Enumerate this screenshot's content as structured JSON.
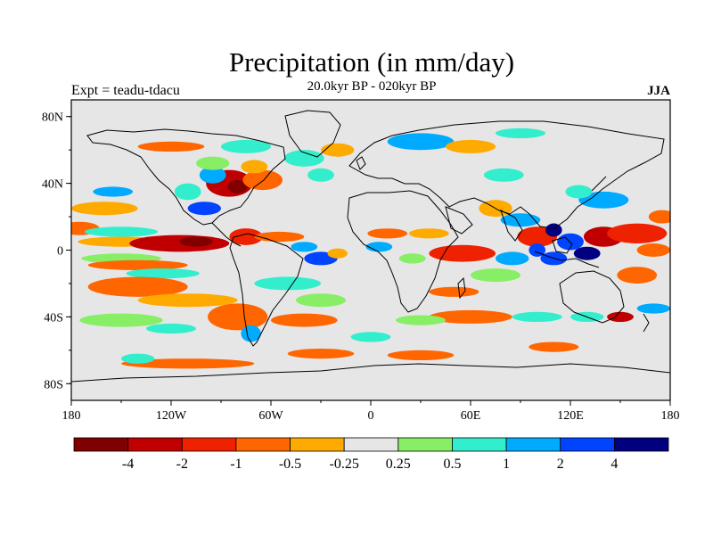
{
  "title": "Precipitation (in mm/day)",
  "subtitle": "20.0kyr BP - 020kyr BP",
  "left_label": "Expt = teadu-tdacu",
  "right_label": "JJA",
  "chart_data": {
    "type": "heatmap",
    "title": "Precipitation (in mm/day)",
    "subtitle": "20.0kyr BP - 020kyr BP",
    "experiment": "Expt = teadu-tdacu",
    "season": "JJA",
    "x_range": [
      -180,
      180
    ],
    "y_range": [
      -90,
      90
    ],
    "x_ticks": [
      {
        "value": -180,
        "label": "180"
      },
      {
        "value": -120,
        "label": "120W"
      },
      {
        "value": -60,
        "label": "60W"
      },
      {
        "value": 0,
        "label": "0"
      },
      {
        "value": 60,
        "label": "60E"
      },
      {
        "value": 120,
        "label": "120E"
      },
      {
        "value": 180,
        "label": "180"
      }
    ],
    "y_ticks": [
      {
        "value": 80,
        "label": "80N"
      },
      {
        "value": 40,
        "label": "40N"
      },
      {
        "value": 0,
        "label": "0"
      },
      {
        "value": -40,
        "label": "40S"
      },
      {
        "value": -80,
        "label": "80S"
      }
    ],
    "colorbar": {
      "colors": [
        "#800000",
        "#c00000",
        "#ee2200",
        "#ff6600",
        "#ffaa00",
        "#e6e6e6",
        "#88ee66",
        "#33eecc",
        "#00aaff",
        "#0044ff",
        "#000080"
      ],
      "labels": [
        {
          "at": 1,
          "text": "-4"
        },
        {
          "at": 2,
          "text": "-2"
        },
        {
          "at": 3,
          "text": "-1"
        },
        {
          "at": 4,
          "text": "-0.5"
        },
        {
          "at": 5,
          "text": "-0.25"
        },
        {
          "at": 6,
          "text": "0.25"
        },
        {
          "at": 7,
          "text": "0.5"
        },
        {
          "at": 8,
          "text": "1"
        },
        {
          "at": 9,
          "text": "2"
        },
        {
          "at": 10,
          "text": "4"
        }
      ]
    },
    "anomaly_patches": [
      {
        "lon": -175,
        "lat": 13,
        "rlon": 12,
        "rlat": 4,
        "level": 3
      },
      {
        "lon": -150,
        "lat": 11,
        "rlon": 22,
        "rlat": 3,
        "level": 7
      },
      {
        "lon": -150,
        "lat": 5,
        "rlon": 26,
        "rlat": 3,
        "level": 4
      },
      {
        "lon": -115,
        "lat": 4,
        "rlon": 30,
        "rlat": 5,
        "level": 1
      },
      {
        "lon": -105,
        "lat": 5,
        "rlon": 10,
        "rlat": 3,
        "level": 0
      },
      {
        "lon": -150,
        "lat": -5,
        "rlon": 24,
        "rlat": 3,
        "level": 6
      },
      {
        "lon": -140,
        "lat": -9,
        "rlon": 30,
        "rlat": 3,
        "level": 3
      },
      {
        "lon": -125,
        "lat": -14,
        "rlon": 22,
        "rlat": 3,
        "level": 7
      },
      {
        "lon": -140,
        "lat": -22,
        "rlon": 30,
        "rlat": 6,
        "level": 3
      },
      {
        "lon": -110,
        "lat": -30,
        "rlon": 30,
        "rlat": 4,
        "level": 4
      },
      {
        "lon": -150,
        "lat": -42,
        "rlon": 25,
        "rlat": 4,
        "level": 6
      },
      {
        "lon": -120,
        "lat": -47,
        "rlon": 15,
        "rlat": 3,
        "level": 7
      },
      {
        "lon": -80,
        "lat": -40,
        "rlon": 18,
        "rlat": 8,
        "level": 3
      },
      {
        "lon": -72,
        "lat": -50,
        "rlon": 6,
        "rlat": 5,
        "level": 8
      },
      {
        "lon": -85,
        "lat": 40,
        "rlon": 14,
        "rlat": 8,
        "level": 1
      },
      {
        "lon": -80,
        "lat": 38,
        "rlon": 6,
        "rlat": 4,
        "level": 0
      },
      {
        "lon": -65,
        "lat": 42,
        "rlon": 12,
        "rlat": 6,
        "level": 3
      },
      {
        "lon": -100,
        "lat": 25,
        "rlon": 10,
        "rlat": 4,
        "level": 9
      },
      {
        "lon": -95,
        "lat": 45,
        "rlon": 8,
        "rlat": 5,
        "level": 8
      },
      {
        "lon": -110,
        "lat": 35,
        "rlon": 8,
        "rlat": 5,
        "level": 7
      },
      {
        "lon": -95,
        "lat": 52,
        "rlon": 10,
        "rlat": 4,
        "level": 6
      },
      {
        "lon": -70,
        "lat": 50,
        "rlon": 8,
        "rlat": 4,
        "level": 4
      },
      {
        "lon": -120,
        "lat": 62,
        "rlon": 20,
        "rlat": 3,
        "level": 3
      },
      {
        "lon": -75,
        "lat": 62,
        "rlon": 15,
        "rlat": 4,
        "level": 7
      },
      {
        "lon": -75,
        "lat": 8,
        "rlon": 10,
        "rlat": 5,
        "level": 2
      },
      {
        "lon": -55,
        "lat": 8,
        "rlon": 15,
        "rlat": 3,
        "level": 3
      },
      {
        "lon": -40,
        "lat": 2,
        "rlon": 8,
        "rlat": 3,
        "level": 8
      },
      {
        "lon": -30,
        "lat": -5,
        "rlon": 10,
        "rlat": 4,
        "level": 9
      },
      {
        "lon": -20,
        "lat": -2,
        "rlon": 6,
        "rlat": 3,
        "level": 4
      },
      {
        "lon": -50,
        "lat": -20,
        "rlon": 20,
        "rlat": 4,
        "level": 7
      },
      {
        "lon": -40,
        "lat": -42,
        "rlon": 20,
        "rlat": 4,
        "level": 3
      },
      {
        "lon": -30,
        "lat": -30,
        "rlon": 15,
        "rlat": 4,
        "level": 6
      },
      {
        "lon": -160,
        "lat": 25,
        "rlon": 20,
        "rlat": 4,
        "level": 4
      },
      {
        "lon": -155,
        "lat": 35,
        "rlon": 12,
        "rlat": 3,
        "level": 8
      },
      {
        "lon": -40,
        "lat": 55,
        "rlon": 12,
        "rlat": 5,
        "level": 7
      },
      {
        "lon": -30,
        "lat": 45,
        "rlon": 8,
        "rlat": 4,
        "level": 7
      },
      {
        "lon": -20,
        "lat": 60,
        "rlon": 10,
        "rlat": 4,
        "level": 4
      },
      {
        "lon": 30,
        "lat": 65,
        "rlon": 20,
        "rlat": 5,
        "level": 8
      },
      {
        "lon": 60,
        "lat": 62,
        "rlon": 15,
        "rlat": 4,
        "level": 4
      },
      {
        "lon": 90,
        "lat": 70,
        "rlon": 15,
        "rlat": 3,
        "level": 7
      },
      {
        "lon": 80,
        "lat": 45,
        "rlon": 12,
        "rlat": 4,
        "level": 7
      },
      {
        "lon": 10,
        "lat": 10,
        "rlon": 12,
        "rlat": 3,
        "level": 3
      },
      {
        "lon": 35,
        "lat": 10,
        "rlon": 12,
        "rlat": 3,
        "level": 4
      },
      {
        "lon": 5,
        "lat": 2,
        "rlon": 8,
        "rlat": 3,
        "level": 8
      },
      {
        "lon": 25,
        "lat": -5,
        "rlon": 8,
        "rlat": 3,
        "level": 6
      },
      {
        "lon": 55,
        "lat": -2,
        "rlon": 20,
        "rlat": 5,
        "level": 2
      },
      {
        "lon": 85,
        "lat": -5,
        "rlon": 10,
        "rlat": 4,
        "level": 8
      },
      {
        "lon": 75,
        "lat": -15,
        "rlon": 15,
        "rlat": 4,
        "level": 6
      },
      {
        "lon": 50,
        "lat": -25,
        "rlon": 15,
        "rlat": 3,
        "level": 3
      },
      {
        "lon": 60,
        "lat": -40,
        "rlon": 25,
        "rlat": 4,
        "level": 3
      },
      {
        "lon": 30,
        "lat": -42,
        "rlon": 15,
        "rlat": 3,
        "level": 6
      },
      {
        "lon": 100,
        "lat": -40,
        "rlon": 15,
        "rlat": 3,
        "level": 7
      },
      {
        "lon": 75,
        "lat": 25,
        "rlon": 10,
        "rlat": 5,
        "level": 4
      },
      {
        "lon": 90,
        "lat": 18,
        "rlon": 12,
        "rlat": 4,
        "level": 8
      },
      {
        "lon": 100,
        "lat": 8,
        "rlon": 12,
        "rlat": 6,
        "level": 2
      },
      {
        "lon": 110,
        "lat": 12,
        "rlon": 5,
        "rlat": 4,
        "level": 10
      },
      {
        "lon": 120,
        "lat": 5,
        "rlon": 8,
        "rlat": 5,
        "level": 9
      },
      {
        "lon": 100,
        "lat": 0,
        "rlon": 5,
        "rlat": 4,
        "level": 9
      },
      {
        "lon": 110,
        "lat": -5,
        "rlon": 8,
        "rlat": 4,
        "level": 9
      },
      {
        "lon": 130,
        "lat": -2,
        "rlon": 8,
        "rlat": 4,
        "level": 10
      },
      {
        "lon": 140,
        "lat": 8,
        "rlon": 12,
        "rlat": 6,
        "level": 1
      },
      {
        "lon": 160,
        "lat": 10,
        "rlon": 18,
        "rlat": 6,
        "level": 2
      },
      {
        "lon": 170,
        "lat": 0,
        "rlon": 10,
        "rlat": 4,
        "level": 3
      },
      {
        "lon": 140,
        "lat": 30,
        "rlon": 15,
        "rlat": 5,
        "level": 8
      },
      {
        "lon": 125,
        "lat": 35,
        "rlon": 8,
        "rlat": 4,
        "level": 7
      },
      {
        "lon": 175,
        "lat": 20,
        "rlon": 8,
        "rlat": 4,
        "level": 3
      },
      {
        "lon": 160,
        "lat": -15,
        "rlon": 12,
        "rlat": 5,
        "level": 3
      },
      {
        "lon": 150,
        "lat": -40,
        "rlon": 8,
        "rlat": 3,
        "level": 1
      },
      {
        "lon": 130,
        "lat": -40,
        "rlon": 10,
        "rlat": 3,
        "level": 7
      },
      {
        "lon": 170,
        "lat": -35,
        "rlon": 10,
        "rlat": 3,
        "level": 8
      },
      {
        "lon": -110,
        "lat": -68,
        "rlon": 40,
        "rlat": 3,
        "level": 3
      },
      {
        "lon": -30,
        "lat": -62,
        "rlon": 20,
        "rlat": 3,
        "level": 3
      },
      {
        "lon": 30,
        "lat": -63,
        "rlon": 20,
        "rlat": 3,
        "level": 3
      },
      {
        "lon": 0,
        "lat": -52,
        "rlon": 12,
        "rlat": 3,
        "level": 7
      },
      {
        "lon": 110,
        "lat": -58,
        "rlon": 15,
        "rlat": 3,
        "level": 3
      },
      {
        "lon": -140,
        "lat": -65,
        "rlon": 10,
        "rlat": 3,
        "level": 7
      }
    ]
  }
}
